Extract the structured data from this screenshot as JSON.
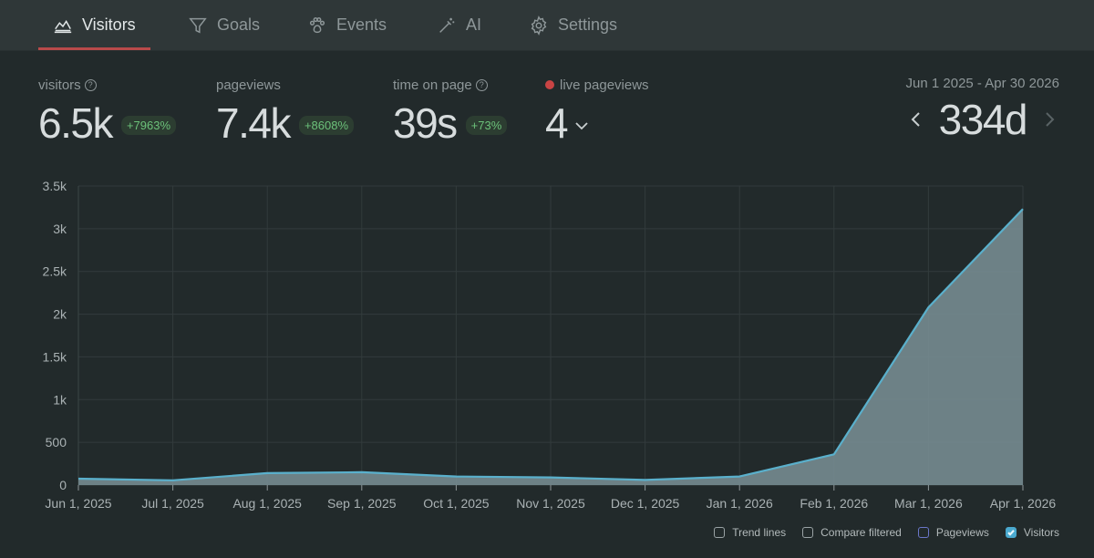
{
  "tabs": [
    {
      "label": "Visitors",
      "icon": "line-chart-icon",
      "active": true
    },
    {
      "label": "Goals",
      "icon": "funnel-icon",
      "active": false
    },
    {
      "label": "Events",
      "icon": "paw-icon",
      "active": false
    },
    {
      "label": "AI",
      "icon": "magic-wand-icon",
      "active": false
    },
    {
      "label": "Settings",
      "icon": "gear-icon",
      "active": false
    }
  ],
  "stats": {
    "visitors": {
      "label": "visitors",
      "value": "6.5k",
      "change": "+7963%"
    },
    "pageviews": {
      "label": "pageviews",
      "value": "7.4k",
      "change": "+8608%"
    },
    "time_on_page": {
      "label": "time on page",
      "value": "39s",
      "change": "+73%"
    },
    "live": {
      "label": "live pageviews",
      "value": "4"
    }
  },
  "period": {
    "date_range": "Jun 1 2025 - Apr 30 2026",
    "value": "334d"
  },
  "colors": {
    "accent_tab": "#b94a4a",
    "series_line": "#5ab0cc",
    "series_fill": "#7a9096",
    "positive_badge_text": "#6cc17a",
    "live_dot": "#c94444"
  },
  "chart_data": {
    "type": "area",
    "x": [
      "Jun 1, 2025",
      "Jul 1, 2025",
      "Aug 1, 2025",
      "Sep 1, 2025",
      "Oct 1, 2025",
      "Nov 1, 2025",
      "Dec 1, 2025",
      "Jan 1, 2026",
      "Feb 1, 2026",
      "Mar 1, 2026",
      "Apr 1, 2026"
    ],
    "series": [
      {
        "name": "Visitors",
        "values": [
          75,
          55,
          140,
          150,
          100,
          90,
          60,
          100,
          360,
          2080,
          3230
        ]
      }
    ],
    "ylim": [
      0,
      3500
    ],
    "yticks": [
      0,
      500,
      1000,
      1500,
      2000,
      2500,
      3000,
      3500
    ],
    "ytick_labels": [
      "0",
      "500",
      "1k",
      "1.5k",
      "2k",
      "2.5k",
      "3k",
      "3.5k"
    ],
    "grid": true
  },
  "legend": [
    {
      "label": "Trend lines",
      "checked": false
    },
    {
      "label": "Compare filtered",
      "checked": false
    },
    {
      "label": "Pageviews",
      "checked": false
    },
    {
      "label": "Visitors",
      "checked": true
    }
  ]
}
